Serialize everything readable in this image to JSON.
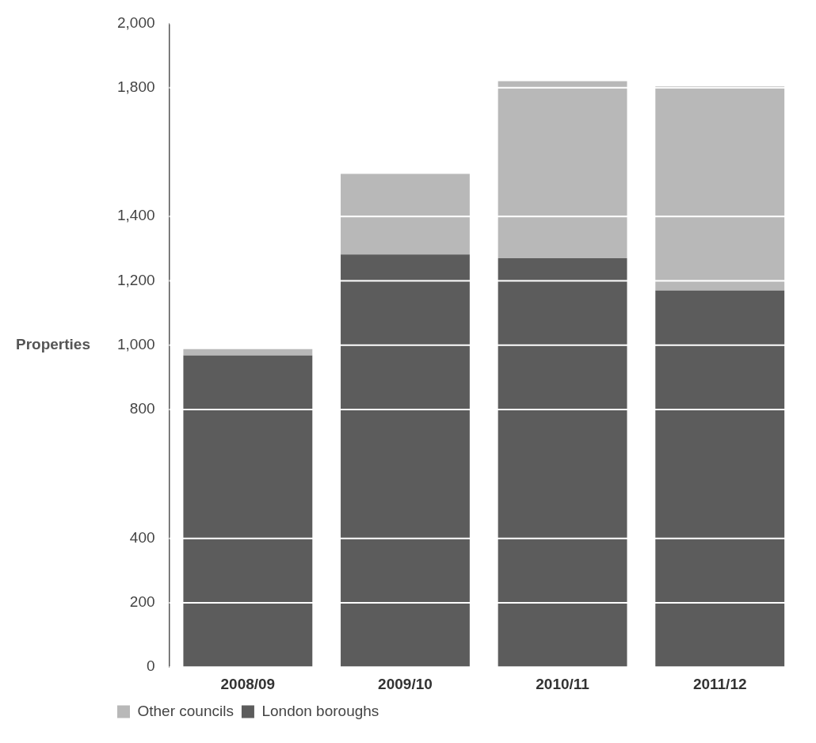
{
  "chart_data": {
    "type": "bar",
    "ylabel": "Properties",
    "categories": [
      "2008/09",
      "2009/10",
      "2010/11",
      "2011/12"
    ],
    "stacked": true,
    "series": [
      {
        "name": "London boroughs",
        "color": "#5c5c5c",
        "values": [
          968,
          1282,
          1270,
          1170
        ]
      },
      {
        "name": "Other councils",
        "color": "#b8b8b8",
        "values": [
          20,
          250,
          550,
          634
        ]
      }
    ],
    "ylim": [
      0,
      2000
    ],
    "yticks": [
      0,
      200,
      400,
      800,
      {
        "value": 1000,
        "label": "1,000"
      },
      {
        "value": 1200,
        "label": "1,200"
      },
      {
        "value": 1400,
        "label": "1,400"
      },
      {
        "value": 1800,
        "label": "1,800"
      },
      {
        "value": 2000,
        "label": "2,000"
      }
    ],
    "grid": "y",
    "legend": "bottom left"
  }
}
